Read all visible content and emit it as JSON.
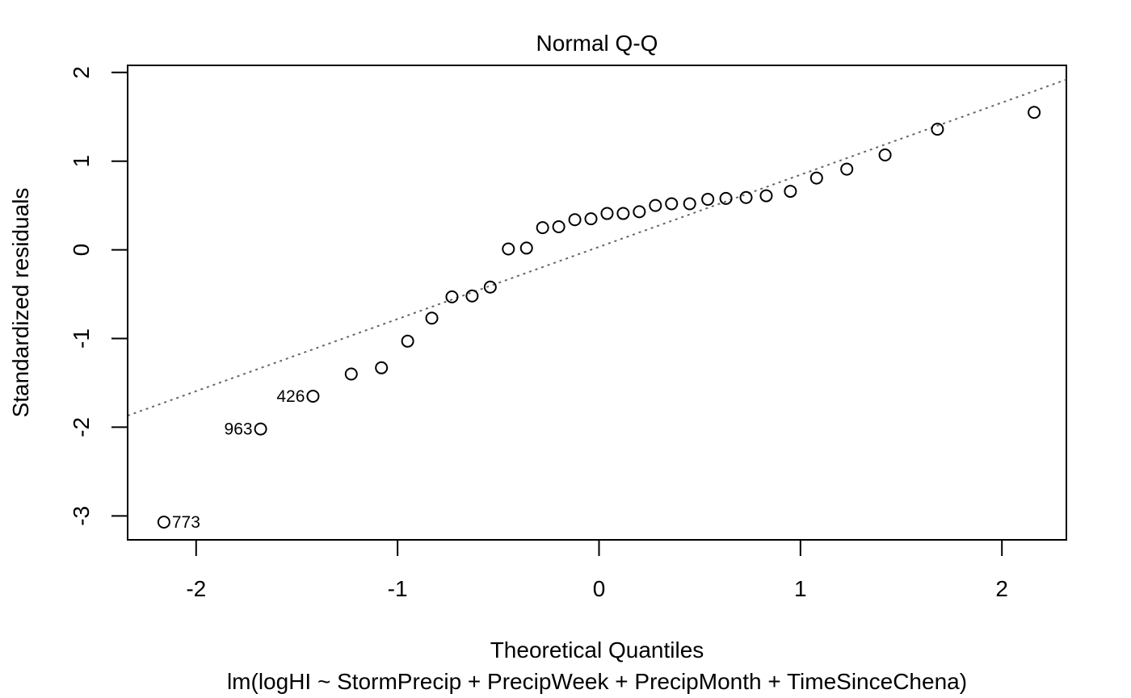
{
  "chart_data": {
    "type": "scatter",
    "title": "Normal Q-Q",
    "xlabel": "Theoretical Quantiles",
    "subtitle": "lm(logHI ~ StormPrecip + PrecipWeek + PrecipMonth + TimeSinceChena)",
    "ylabel": "Standardized residuals",
    "xlim": [
      -2.34,
      2.32
    ],
    "ylim": [
      -3.27,
      2.08
    ],
    "x_ticks": [
      -2,
      -1,
      0,
      1,
      2
    ],
    "x_tick_labels": [
      "-2",
      "-1",
      "0",
      "1",
      "2"
    ],
    "y_ticks": [
      -3,
      -2,
      -1,
      0,
      1,
      2
    ],
    "y_tick_labels": [
      "-3",
      "-2",
      "-1",
      "0",
      "1",
      "2"
    ],
    "grid": false,
    "reference_line": {
      "style": "dotted",
      "color": "#666666",
      "x": [
        -2.34,
        2.32
      ],
      "y": [
        -1.87,
        1.92
      ]
    },
    "points": [
      {
        "x": -2.16,
        "y": -3.07,
        "label": "773"
      },
      {
        "x": -1.68,
        "y": -2.02,
        "label": "963"
      },
      {
        "x": -1.42,
        "y": -1.65,
        "label": "426"
      },
      {
        "x": -1.23,
        "y": -1.4
      },
      {
        "x": -1.08,
        "y": -1.33
      },
      {
        "x": -0.95,
        "y": -1.03
      },
      {
        "x": -0.83,
        "y": -0.77
      },
      {
        "x": -0.73,
        "y": -0.53
      },
      {
        "x": -0.63,
        "y": -0.52
      },
      {
        "x": -0.54,
        "y": -0.42
      },
      {
        "x": -0.45,
        "y": 0.01
      },
      {
        "x": -0.36,
        "y": 0.02
      },
      {
        "x": -0.28,
        "y": 0.25
      },
      {
        "x": -0.2,
        "y": 0.26
      },
      {
        "x": -0.12,
        "y": 0.34
      },
      {
        "x": -0.04,
        "y": 0.35
      },
      {
        "x": 0.04,
        "y": 0.41
      },
      {
        "x": 0.12,
        "y": 0.41
      },
      {
        "x": 0.2,
        "y": 0.43
      },
      {
        "x": 0.28,
        "y": 0.5
      },
      {
        "x": 0.36,
        "y": 0.52
      },
      {
        "x": 0.45,
        "y": 0.52
      },
      {
        "x": 0.54,
        "y": 0.57
      },
      {
        "x": 0.63,
        "y": 0.58
      },
      {
        "x": 0.73,
        "y": 0.59
      },
      {
        "x": 0.83,
        "y": 0.61
      },
      {
        "x": 0.95,
        "y": 0.66
      },
      {
        "x": 1.08,
        "y": 0.81
      },
      {
        "x": 1.23,
        "y": 0.91
      },
      {
        "x": 1.42,
        "y": 1.07
      },
      {
        "x": 1.68,
        "y": 1.36
      },
      {
        "x": 2.16,
        "y": 1.55
      }
    ]
  }
}
